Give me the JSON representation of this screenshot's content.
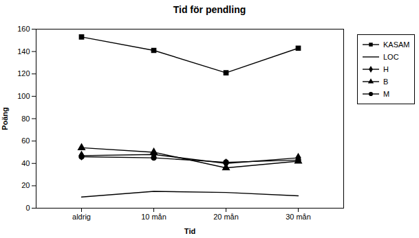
{
  "chart_data": {
    "type": "line",
    "title": "Tid för pendling",
    "xlabel": "Tid",
    "ylabel": "Poäng",
    "categories": [
      "aldrig",
      "10 mån",
      "20 mån",
      "30 mån"
    ],
    "series": [
      {
        "name": "KASAM",
        "color": "#000000",
        "marker": "square",
        "values": [
          153,
          141,
          121,
          143
        ]
      },
      {
        "name": "LOC",
        "color": "#000000",
        "marker": "none",
        "values": [
          10,
          15,
          14,
          11
        ]
      },
      {
        "name": "H",
        "color": "#000000",
        "marker": "diamond",
        "values": [
          47,
          48,
          40,
          45
        ]
      },
      {
        "name": "B",
        "color": "#000000",
        "marker": "triangle",
        "values": [
          54,
          50,
          36,
          42
        ]
      },
      {
        "name": "M",
        "color": "#000000",
        "marker": "circle",
        "values": [
          46,
          45,
          41,
          43
        ]
      }
    ],
    "ylim": [
      0,
      160
    ],
    "yticks": [
      0,
      20,
      40,
      60,
      80,
      100,
      120,
      140,
      160
    ],
    "grid": false,
    "legend": "right"
  }
}
